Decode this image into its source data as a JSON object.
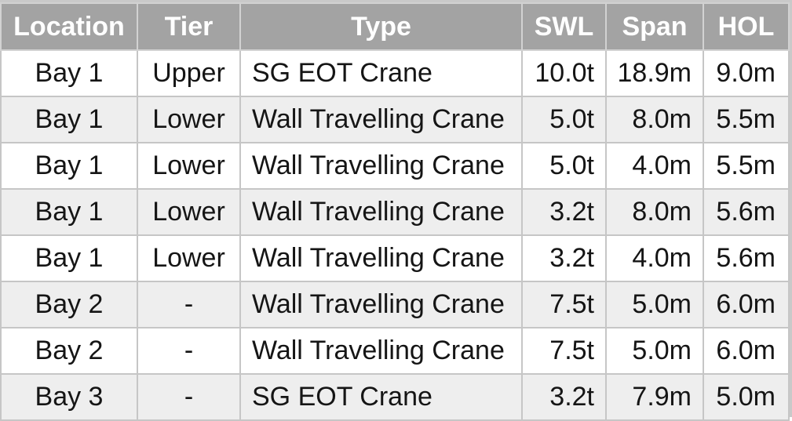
{
  "table": {
    "headers": [
      "Location",
      "Tier",
      "Type",
      "SWL",
      "Span",
      "HOL"
    ],
    "rows": [
      [
        "Bay 1",
        "Upper",
        "SG EOT Crane",
        "10.0t",
        "18.9m",
        "9.0m"
      ],
      [
        "Bay 1",
        "Lower",
        "Wall Travelling Crane",
        "5.0t",
        "8.0m",
        "5.5m"
      ],
      [
        "Bay 1",
        "Lower",
        "Wall Travelling Crane",
        "5.0t",
        "4.0m",
        "5.5m"
      ],
      [
        "Bay 1",
        "Lower",
        "Wall Travelling Crane",
        "3.2t",
        "8.0m",
        "5.6m"
      ],
      [
        "Bay 1",
        "Lower",
        "Wall Travelling Crane",
        "3.2t",
        "4.0m",
        "5.6m"
      ],
      [
        "Bay 2",
        "-",
        "Wall Travelling Crane",
        "7.5t",
        "5.0m",
        "6.0m"
      ],
      [
        "Bay 2",
        "-",
        "Wall Travelling Crane",
        "7.5t",
        "5.0m",
        "6.0m"
      ],
      [
        "Bay 3",
        "-",
        "SG EOT Crane",
        "3.2t",
        "7.9m",
        "5.0m"
      ]
    ]
  },
  "colors": {
    "header_bg": "#a3a3a3",
    "header_text": "#ffffff",
    "row_odd_bg": "#ffffff",
    "row_even_bg": "#eeeeee",
    "border": "#c6c6c6"
  }
}
